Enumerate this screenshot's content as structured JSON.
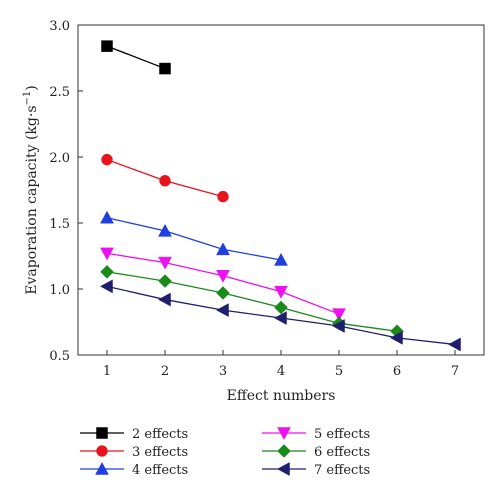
{
  "chart_data": {
    "type": "line",
    "title": "",
    "xlabel": "Effect numbers",
    "ylabel": "Evaporation capacity (kg·s",
    "ylabel_superscript": "−1",
    "ylabel_close": ")",
    "xlim": [
      0.5,
      7.5
    ],
    "ylim": [
      0.5,
      3.0
    ],
    "xticks": [
      1,
      2,
      3,
      4,
      5,
      6,
      7
    ],
    "yticks": [
      0.5,
      1.0,
      1.5,
      2.0,
      2.5,
      3.0
    ],
    "xtick_labels": [
      "1",
      "2",
      "3",
      "4",
      "5",
      "6",
      "7"
    ],
    "ytick_labels": [
      "0.5",
      "1.0",
      "1.5",
      "2.0",
      "2.5",
      "3.0"
    ],
    "grid": false,
    "legend_position": "bottom",
    "series": [
      {
        "name": "2 effects",
        "color": "#000000",
        "marker": "square",
        "x": [
          1,
          2
        ],
        "y": [
          2.84,
          2.67
        ]
      },
      {
        "name": "3 effects",
        "color": "#e8141b",
        "marker": "circle",
        "x": [
          1,
          2,
          3
        ],
        "y": [
          1.98,
          1.82,
          1.7
        ]
      },
      {
        "name": "4 effects",
        "color": "#1f3fe0",
        "marker": "triangle-up",
        "x": [
          1,
          2,
          3,
          4
        ],
        "y": [
          1.54,
          1.44,
          1.3,
          1.22
        ]
      },
      {
        "name": "5 effects",
        "color": "#ee10ee",
        "marker": "triangle-down",
        "x": [
          1,
          2,
          3,
          4,
          5
        ],
        "y": [
          1.27,
          1.2,
          1.1,
          0.98,
          0.81
        ]
      },
      {
        "name": "6 effects",
        "color": "#1a8a1a",
        "marker": "diamond",
        "x": [
          1,
          2,
          3,
          4,
          5,
          6
        ],
        "y": [
          1.13,
          1.06,
          0.97,
          0.86,
          0.74,
          0.68
        ]
      },
      {
        "name": "7 effects",
        "color": "#1f1f6e",
        "marker": "triangle-left",
        "x": [
          1,
          2,
          3,
          4,
          5,
          6,
          7
        ],
        "y": [
          1.02,
          0.92,
          0.84,
          0.78,
          0.72,
          0.63,
          0.58
        ]
      }
    ]
  }
}
